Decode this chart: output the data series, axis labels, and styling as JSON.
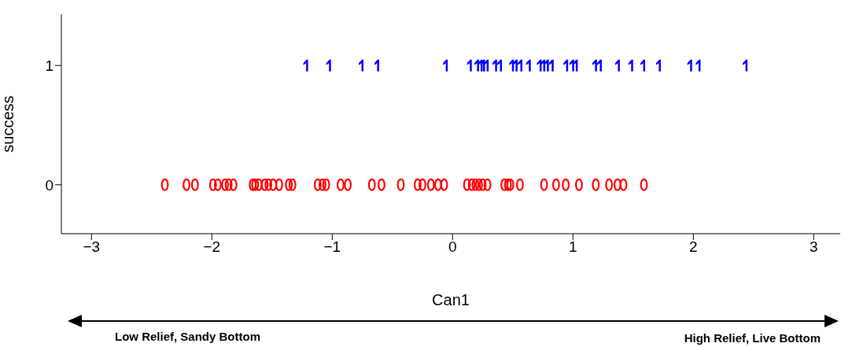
{
  "chart_data": {
    "type": "scatter",
    "xlabel": "Can1",
    "ylabel": "success",
    "xlim": [
      -3.25,
      3.22
    ],
    "ylim": [
      -0.41,
      1.43
    ],
    "xticks": [
      {
        "value": -3,
        "label": "−3"
      },
      {
        "value": -2,
        "label": "−2"
      },
      {
        "value": -1,
        "label": "−1"
      },
      0,
      1,
      2,
      3
    ],
    "yticks": [
      0,
      1
    ],
    "series": [
      {
        "color": "#0000ff",
        "x": [
          -1.22,
          -1.03,
          -0.76,
          -0.63,
          -0.06,
          0.14,
          0.2,
          0.23,
          0.25,
          0.28,
          0.35,
          0.39,
          0.49,
          0.52,
          0.56,
          0.63,
          0.72,
          0.75,
          0.78,
          0.82,
          0.94,
          0.99,
          1.02,
          1.18,
          1.22,
          1.37,
          1.48,
          1.58,
          1.71,
          1.97,
          2.04,
          2.43
        ],
        "values": [
          1,
          1,
          1,
          1,
          1,
          1,
          1,
          1,
          1,
          1,
          1,
          1,
          1,
          1,
          1,
          1,
          1,
          1,
          1,
          1,
          1,
          1,
          1,
          1,
          1,
          1,
          1,
          1,
          1,
          1,
          1,
          1
        ]
      },
      {
        "color": "#ff0000",
        "x": [
          -2.39,
          -2.21,
          -2.14,
          -1.99,
          -1.95,
          -1.89,
          -1.86,
          -1.82,
          -1.66,
          -1.64,
          -1.61,
          -1.56,
          -1.53,
          -1.49,
          -1.44,
          -1.36,
          -1.33,
          -1.12,
          -1.08,
          -1.05,
          -0.93,
          -0.87,
          -0.67,
          -0.59,
          -0.43,
          -0.29,
          -0.25,
          -0.18,
          -0.12,
          -0.07,
          0.12,
          0.16,
          0.19,
          0.22,
          0.25,
          0.29,
          0.43,
          0.46,
          0.48,
          0.56,
          0.76,
          0.86,
          0.94,
          1.05,
          1.19,
          1.3,
          1.37,
          1.42,
          1.59
        ],
        "values": [
          0,
          0,
          0,
          0,
          0,
          0,
          0,
          0,
          0,
          0,
          0,
          0,
          0,
          0,
          0,
          0,
          0,
          0,
          0,
          0,
          0,
          0,
          0,
          0,
          0,
          0,
          0,
          0,
          0,
          0,
          0,
          0,
          0,
          0,
          0,
          0,
          0,
          0,
          0,
          0,
          0,
          0,
          0,
          0,
          0,
          0,
          0,
          0,
          0
        ]
      }
    ],
    "annotations": [
      "Low Relief, Sandy Bottom",
      "High Relief, Live Bottom"
    ]
  }
}
